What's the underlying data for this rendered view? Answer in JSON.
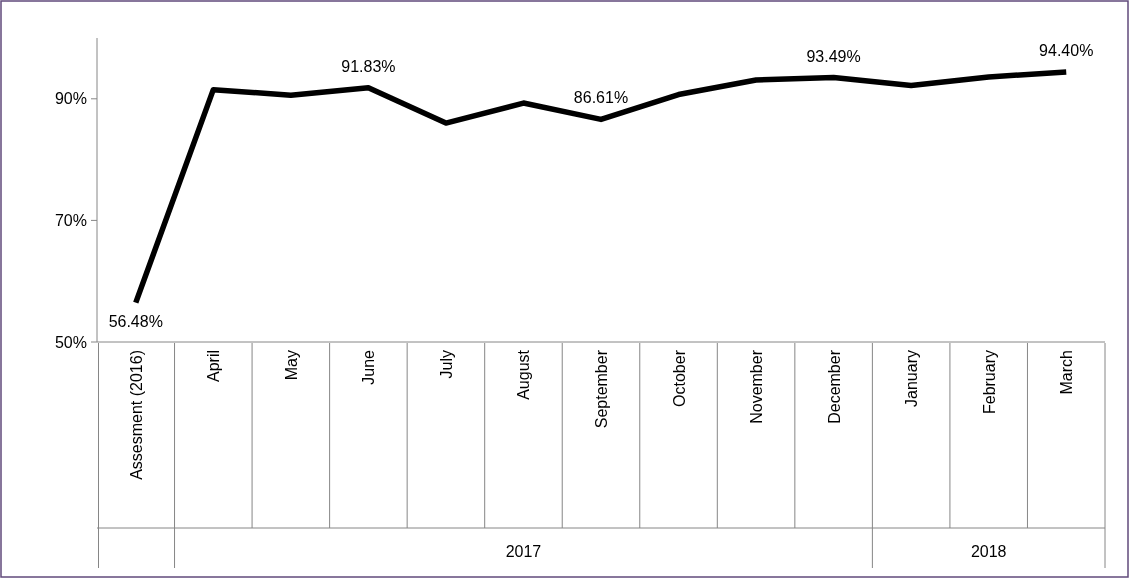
{
  "chart_data": {
    "type": "line",
    "categories": [
      "Assesment (2016)",
      "April",
      "May",
      "June",
      "July",
      "August",
      "September",
      "October",
      "November",
      "December",
      "January",
      "February",
      "March"
    ],
    "series": [
      {
        "color": "#000000",
        "values": [
          56.48,
          91.5,
          90.6,
          91.83,
          86.0,
          89.3,
          86.61,
          90.7,
          93.1,
          93.49,
          92.2,
          93.6,
          94.4
        ],
        "value_labels": [
          "56.48%",
          null,
          null,
          "91.83%",
          null,
          null,
          "86.61%",
          null,
          null,
          "93.49%",
          null,
          null,
          "94.40%"
        ]
      }
    ],
    "ylim": [
      50,
      100
    ],
    "yticks": [
      {
        "value": 50,
        "label": "50%"
      },
      {
        "value": 70,
        "label": "70%"
      },
      {
        "value": 90,
        "label": "90%"
      }
    ],
    "annotations": [
      "2017",
      "2018"
    ],
    "grid": false,
    "marker": "none",
    "line_style": "solid"
  }
}
